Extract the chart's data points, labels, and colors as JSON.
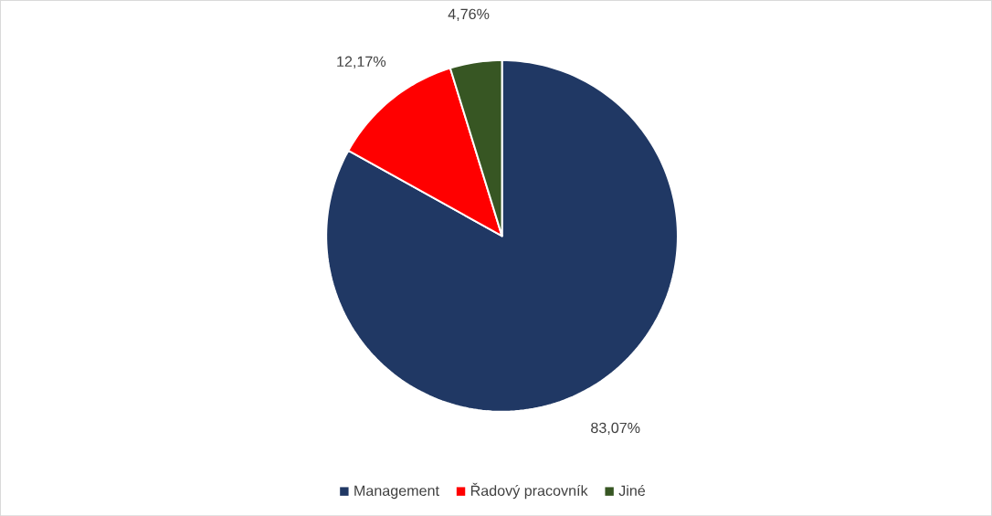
{
  "chart_data": {
    "type": "pie",
    "categories": [
      "Management",
      "Řadový pracovník",
      "Jiné"
    ],
    "values": [
      83.07,
      12.17,
      4.76
    ],
    "colors": [
      "#203864",
      "#ff0000",
      "#375623"
    ],
    "value_labels": [
      "83,07%",
      "12,17%",
      "4,76%"
    ],
    "legend": "bottom"
  }
}
